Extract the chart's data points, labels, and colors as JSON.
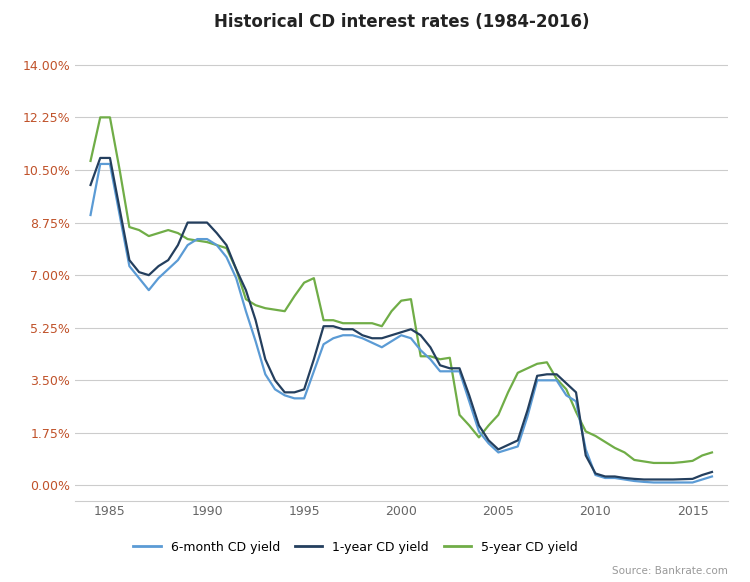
{
  "title": "Historical CD interest rates (1984-2016)",
  "source": "Source: Bankrate.com",
  "yticks": [
    0.0,
    1.75,
    3.5,
    5.25,
    7.0,
    8.75,
    10.5,
    12.25,
    14.0
  ],
  "ytick_labels": [
    "0.00%",
    "1.75%",
    "3.50%",
    "5.25%",
    "7.00%",
    "8.75%",
    "10.50%",
    "12.25%",
    "14.00%"
  ],
  "xlim": [
    1983.2,
    2016.8
  ],
  "ylim": [
    -0.5,
    14.8
  ],
  "xticks": [
    1985,
    1990,
    1995,
    2000,
    2005,
    2010,
    2015
  ],
  "color_6m": "#5b9bd5",
  "color_1y": "#243f5e",
  "color_5y": "#70ad47",
  "legend_labels": [
    "6-month CD yield",
    "1-year CD yield",
    "5-year CD yield"
  ],
  "background_color": "#ffffff",
  "grid_color": "#cccccc",
  "label_color": "#c0522a",
  "years": [
    1984,
    1984.5,
    1985,
    1985.5,
    1986,
    1986.5,
    1987,
    1987.5,
    1988,
    1988.5,
    1989,
    1989.5,
    1990,
    1990.5,
    1991,
    1991.5,
    1992,
    1992.5,
    1993,
    1993.5,
    1994,
    1994.5,
    1995,
    1995.5,
    1996,
    1996.5,
    1997,
    1997.5,
    1998,
    1998.5,
    1999,
    1999.5,
    2000,
    2000.5,
    2001,
    2001.5,
    2002,
    2002.5,
    2003,
    2003.5,
    2004,
    2004.5,
    2005,
    2005.5,
    2006,
    2006.5,
    2007,
    2007.5,
    2008,
    2008.5,
    2009,
    2009.5,
    2010,
    2010.5,
    2011,
    2011.5,
    2012,
    2012.5,
    2013,
    2013.5,
    2014,
    2014.5,
    2015,
    2015.5,
    2016
  ],
  "vals_6m": [
    9.0,
    10.7,
    10.7,
    9.0,
    7.3,
    6.9,
    6.5,
    6.9,
    7.2,
    7.5,
    8.0,
    8.2,
    8.2,
    8.0,
    7.6,
    6.9,
    5.8,
    4.8,
    3.7,
    3.2,
    3.0,
    2.9,
    2.9,
    3.8,
    4.7,
    4.9,
    5.0,
    5.0,
    4.9,
    4.75,
    4.6,
    4.8,
    5.0,
    4.9,
    4.5,
    4.2,
    3.8,
    3.8,
    3.8,
    2.8,
    1.8,
    1.4,
    1.1,
    1.2,
    1.3,
    2.3,
    3.5,
    3.5,
    3.5,
    3.0,
    2.8,
    1.2,
    0.35,
    0.25,
    0.25,
    0.2,
    0.15,
    0.12,
    0.1,
    0.1,
    0.1,
    0.1,
    0.1,
    0.2,
    0.3
  ],
  "vals_1y": [
    10.0,
    10.9,
    10.9,
    9.2,
    7.5,
    7.1,
    7.0,
    7.3,
    7.5,
    8.0,
    8.75,
    8.75,
    8.75,
    8.4,
    8.0,
    7.2,
    6.5,
    5.5,
    4.2,
    3.5,
    3.1,
    3.1,
    3.2,
    4.2,
    5.3,
    5.3,
    5.2,
    5.2,
    5.0,
    4.9,
    4.9,
    5.0,
    5.1,
    5.2,
    5.0,
    4.6,
    4.0,
    3.9,
    3.9,
    3.0,
    2.0,
    1.5,
    1.2,
    1.35,
    1.5,
    2.5,
    3.65,
    3.7,
    3.7,
    3.4,
    3.1,
    1.0,
    0.4,
    0.3,
    0.3,
    0.25,
    0.22,
    0.2,
    0.2,
    0.2,
    0.2,
    0.21,
    0.22,
    0.35,
    0.45
  ],
  "vals_5y": [
    10.8,
    12.25,
    12.25,
    10.5,
    8.6,
    8.5,
    8.3,
    8.4,
    8.5,
    8.4,
    8.2,
    8.15,
    8.1,
    8.0,
    7.9,
    7.2,
    6.2,
    6.0,
    5.9,
    5.85,
    5.8,
    6.3,
    6.75,
    6.9,
    5.5,
    5.5,
    5.4,
    5.4,
    5.4,
    5.4,
    5.3,
    5.8,
    6.15,
    6.2,
    4.3,
    4.3,
    4.2,
    4.25,
    2.35,
    2.0,
    1.6,
    2.0,
    2.35,
    3.1,
    3.75,
    3.9,
    4.05,
    4.1,
    3.55,
    3.2,
    2.45,
    1.8,
    1.65,
    1.45,
    1.25,
    1.1,
    0.85,
    0.8,
    0.75,
    0.75,
    0.75,
    0.78,
    0.82,
    1.0,
    1.1
  ]
}
